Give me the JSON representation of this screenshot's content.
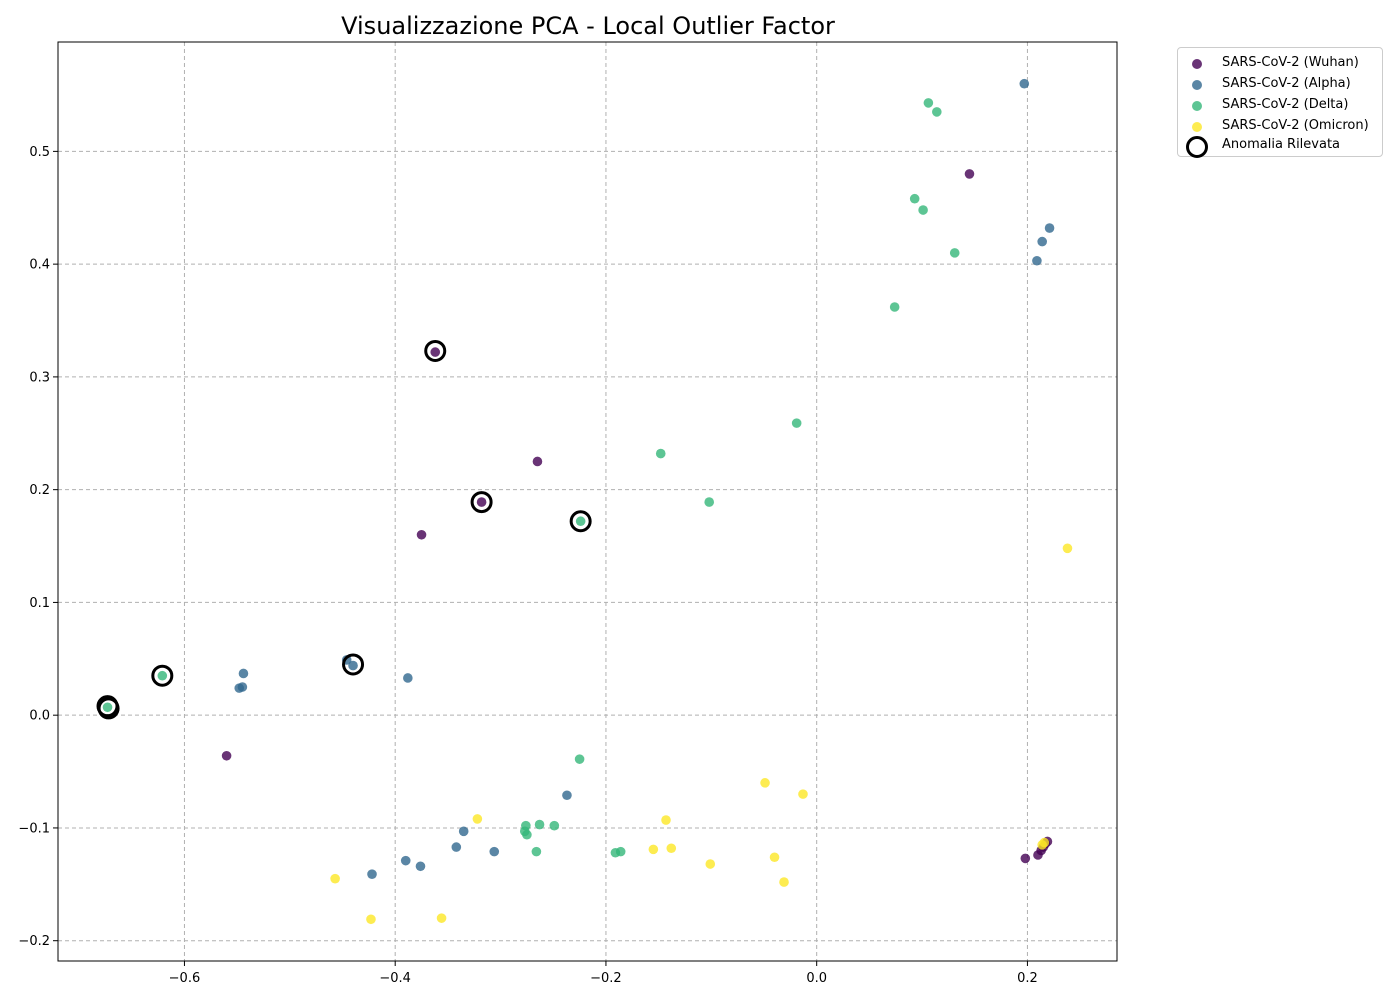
{
  "chart_data": {
    "type": "scatter",
    "title": "Visualizzazione PCA - Local Outlier Factor",
    "xlabel": "",
    "ylabel": "",
    "xlim": [
      -0.72,
      0.285
    ],
    "ylim": [
      -0.218,
      0.597
    ],
    "xticks": [
      -0.6,
      -0.4,
      -0.2,
      0.0,
      0.2
    ],
    "xtick_labels": [
      "−0.6",
      "−0.4",
      "−0.2",
      "0.0",
      "0.2"
    ],
    "yticks": [
      -0.2,
      -0.1,
      0.0,
      0.1,
      0.2,
      0.3,
      0.4,
      0.5
    ],
    "ytick_labels": [
      "−0.2",
      "−0.1",
      "0.0",
      "0.1",
      "0.2",
      "0.3",
      "0.4",
      "0.5"
    ],
    "grid": true,
    "legend_position": "outside-top-right",
    "series": [
      {
        "name": "SARS-CoV-2 (Wuhan)",
        "color": "#440154",
        "points": [
          [
            0.145,
            0.48
          ],
          [
            -0.265,
            0.225
          ],
          [
            -0.375,
            0.16
          ],
          [
            -0.56,
            -0.036
          ],
          [
            0.198,
            -0.127
          ],
          [
            0.21,
            -0.124
          ],
          [
            0.213,
            -0.12
          ],
          [
            0.215,
            -0.117
          ],
          [
            0.217,
            -0.114
          ],
          [
            0.219,
            -0.112
          ],
          [
            -0.362,
            0.322
          ],
          [
            -0.318,
            0.189
          ]
        ]
      },
      {
        "name": "SARS-CoV-2 (Alpha)",
        "color": "#31688e",
        "points": [
          [
            0.197,
            0.56
          ],
          [
            0.221,
            0.432
          ],
          [
            0.214,
            0.42
          ],
          [
            0.209,
            0.403
          ],
          [
            -0.544,
            0.037
          ],
          [
            -0.545,
            0.025
          ],
          [
            -0.548,
            0.024
          ],
          [
            -0.446,
            0.049
          ],
          [
            -0.44,
            0.044
          ],
          [
            -0.388,
            0.033
          ],
          [
            -0.237,
            -0.071
          ],
          [
            -0.335,
            -0.103
          ],
          [
            -0.342,
            -0.117
          ],
          [
            -0.306,
            -0.121
          ],
          [
            -0.39,
            -0.129
          ],
          [
            -0.376,
            -0.134
          ],
          [
            -0.422,
            -0.141
          ]
        ]
      },
      {
        "name": "SARS-CoV-2 (Delta)",
        "color": "#35b779",
        "points": [
          [
            0.106,
            0.543
          ],
          [
            0.114,
            0.535
          ],
          [
            0.093,
            0.458
          ],
          [
            0.101,
            0.448
          ],
          [
            0.131,
            0.41
          ],
          [
            0.074,
            0.362
          ],
          [
            -0.019,
            0.259
          ],
          [
            -0.148,
            0.232
          ],
          [
            -0.102,
            0.189
          ],
          [
            -0.224,
            0.172
          ],
          [
            -0.621,
            0.035
          ],
          [
            -0.673,
            0.007
          ],
          [
            -0.225,
            -0.039
          ],
          [
            -0.276,
            -0.098
          ],
          [
            -0.263,
            -0.097
          ],
          [
            -0.249,
            -0.098
          ],
          [
            -0.277,
            -0.103
          ],
          [
            -0.275,
            -0.106
          ],
          [
            -0.266,
            -0.121
          ],
          [
            -0.191,
            -0.122
          ],
          [
            -0.186,
            -0.121
          ]
        ]
      },
      {
        "name": "SARS-CoV-2 (Omicron)",
        "color": "#fde725",
        "points": [
          [
            0.238,
            0.148
          ],
          [
            -0.049,
            -0.06
          ],
          [
            -0.013,
            -0.07
          ],
          [
            -0.322,
            -0.092
          ],
          [
            -0.143,
            -0.093
          ],
          [
            -0.155,
            -0.119
          ],
          [
            -0.138,
            -0.118
          ],
          [
            -0.101,
            -0.132
          ],
          [
            -0.04,
            -0.126
          ],
          [
            -0.031,
            -0.148
          ],
          [
            -0.457,
            -0.145
          ],
          [
            -0.423,
            -0.181
          ],
          [
            -0.356,
            -0.18
          ],
          [
            0.214,
            -0.115
          ],
          [
            0.216,
            -0.113
          ]
        ]
      }
    ],
    "anomalies": {
      "name": "Anomalia Rilevata",
      "points": [
        [
          -0.362,
          0.323
        ],
        [
          -0.318,
          0.189
        ],
        [
          -0.224,
          0.172
        ],
        [
          -0.44,
          0.045
        ],
        [
          -0.621,
          0.035
        ],
        [
          -0.673,
          0.008
        ],
        [
          -0.672,
          0.006
        ]
      ]
    }
  },
  "colors": {
    "grid": "#b0b0b0",
    "axis": "#000000",
    "anomaly_ring": "#000000"
  }
}
